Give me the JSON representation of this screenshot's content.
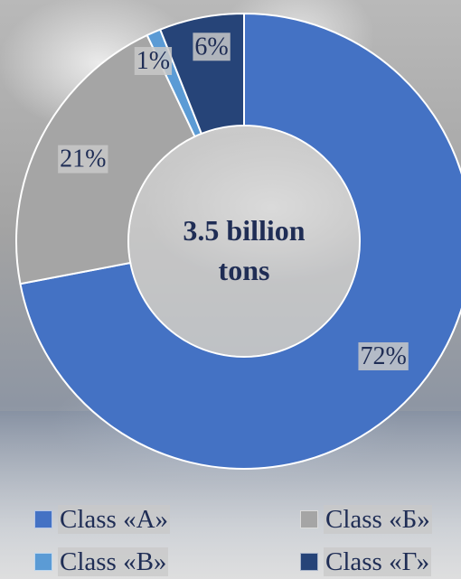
{
  "chart_data": {
    "type": "donut",
    "center_label_lines": [
      "3.5 billion",
      "tons"
    ],
    "series": [
      {
        "name": "Class «А»",
        "value": 72,
        "label": "72%",
        "color": "#4472c4"
      },
      {
        "name": "Class «Б»",
        "value": 21,
        "label": "21%",
        "color": "#a5a5a5"
      },
      {
        "name": "Class «В»",
        "value": 1,
        "label": "1%",
        "color": "#5b9bd5"
      },
      {
        "name": "Class «Г»",
        "value": 6,
        "label": "6%",
        "color": "#264478"
      }
    ],
    "legend_position": "bottom",
    "center_label_color": "#1f2d55"
  }
}
